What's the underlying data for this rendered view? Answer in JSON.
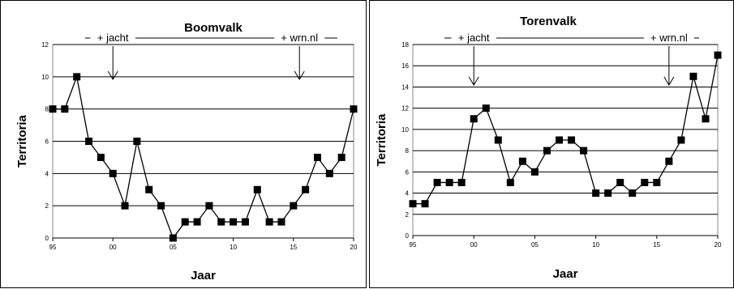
{
  "chart_data": [
    {
      "type": "line",
      "title": "Boomvalk",
      "xlabel": "Jaar",
      "ylabel": "Territoria",
      "x": [
        1995,
        1996,
        1997,
        1998,
        1999,
        2000,
        2001,
        2002,
        2003,
        2004,
        2005,
        2006,
        2007,
        2008,
        2009,
        2010,
        2011,
        2012,
        2013,
        2014,
        2015,
        2016,
        2017,
        2018,
        2019,
        2020
      ],
      "values": [
        8,
        8,
        10,
        6,
        5,
        4,
        2,
        6,
        3,
        2,
        0,
        1,
        1,
        2,
        1,
        1,
        1,
        3,
        1,
        1,
        2,
        3,
        5,
        4,
        5,
        8
      ],
      "xlim": [
        1995,
        2020
      ],
      "ylim": [
        0,
        12
      ],
      "xticks": [
        "95",
        "00",
        "05",
        "10",
        "15",
        "20"
      ],
      "yticks": [
        "0",
        "2",
        "4",
        "6",
        "8",
        "10",
        "12"
      ],
      "grid": true,
      "annotations": [
        {
          "text": "+ jacht",
          "x": 2000
        },
        {
          "text": "+ wrn.nl",
          "x": 2015.5
        }
      ]
    },
    {
      "type": "line",
      "title": "Torenvalk",
      "xlabel": "Jaar",
      "ylabel": "Territoria",
      "x": [
        1995,
        1996,
        1997,
        1998,
        1999,
        2000,
        2001,
        2002,
        2003,
        2004,
        2005,
        2006,
        2007,
        2008,
        2009,
        2010,
        2011,
        2012,
        2013,
        2014,
        2015,
        2016,
        2017,
        2018,
        2019,
        2020
      ],
      "values": [
        3,
        3,
        5,
        5,
        5,
        11,
        12,
        9,
        5,
        7,
        6,
        8,
        9,
        9,
        8,
        4,
        4,
        5,
        4,
        5,
        5,
        7,
        9,
        15,
        11,
        17
      ],
      "xlim": [
        1995,
        2020
      ],
      "ylim": [
        0,
        18
      ],
      "xticks": [
        "95",
        "00",
        "05",
        "10",
        "15",
        "20"
      ],
      "yticks": [
        "0",
        "2",
        "4",
        "6",
        "8",
        "10",
        "12",
        "14",
        "16",
        "18"
      ],
      "grid": true,
      "annotations": [
        {
          "text": "+ jacht",
          "x": 2000
        },
        {
          "text": "+ wrn.nl",
          "x": 2016
        }
      ]
    }
  ]
}
